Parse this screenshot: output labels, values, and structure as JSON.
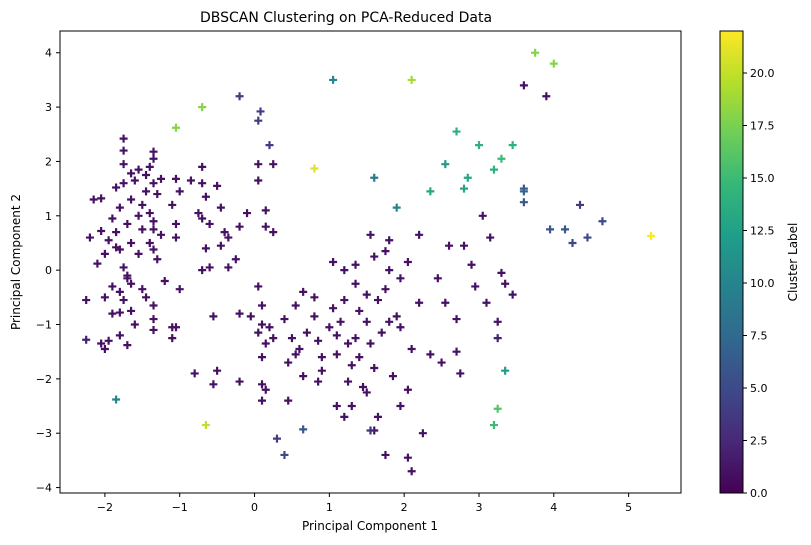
{
  "chart_data": {
    "type": "scatter",
    "title": "DBSCAN Clustering on PCA-Reduced Data",
    "xlabel": "Principal Component 1",
    "ylabel": "Principal Component 2",
    "xlim": [
      -2.6,
      5.7
    ],
    "ylim": [
      -4.1,
      4.4
    ],
    "xticks": [
      -2,
      -1,
      0,
      1,
      2,
      3,
      4,
      5
    ],
    "yticks": [
      -4,
      -3,
      -2,
      -1,
      0,
      1,
      2,
      3,
      4
    ],
    "marker": "plus",
    "colormap": "viridis",
    "colorbar": {
      "label": "Cluster Label",
      "range": [
        0,
        22
      ],
      "ticks": [
        0.0,
        2.5,
        5.0,
        7.5,
        10.0,
        12.5,
        15.0,
        17.5,
        20.0
      ],
      "tick_labels": [
        "0.0",
        "2.5",
        "5.0",
        "7.5",
        "10.0",
        "12.5",
        "15.0",
        "17.5",
        "20.0"
      ]
    },
    "points": [
      [
        -1.75,
        2.42,
        1
      ],
      [
        -1.75,
        2.2,
        1
      ],
      [
        -1.35,
        2.18,
        1
      ],
      [
        -1.35,
        2.05,
        1
      ],
      [
        -1.75,
        1.95,
        1
      ],
      [
        -1.55,
        1.85,
        1
      ],
      [
        -1.65,
        1.78,
        1
      ],
      [
        -1.45,
        1.75,
        1
      ],
      [
        -1.25,
        1.68,
        1
      ],
      [
        -1.05,
        1.68,
        1
      ],
      [
        -1.75,
        1.6,
        1
      ],
      [
        -1.6,
        1.65,
        1
      ],
      [
        -1.35,
        1.6,
        1
      ],
      [
        -1.4,
        1.9,
        1
      ],
      [
        -1.85,
        1.52,
        1
      ],
      [
        -1.45,
        1.45,
        1
      ],
      [
        -1.3,
        1.4,
        1
      ],
      [
        -1.0,
        1.45,
        1
      ],
      [
        -2.05,
        1.32,
        1
      ],
      [
        -1.65,
        1.3,
        1
      ],
      [
        -1.5,
        1.2,
        1
      ],
      [
        -1.1,
        1.2,
        1
      ],
      [
        -2.15,
        1.3,
        1
      ],
      [
        -1.8,
        1.15,
        1
      ],
      [
        -1.4,
        1.05,
        1
      ],
      [
        -1.55,
        1.0,
        1
      ],
      [
        -1.9,
        0.95,
        1
      ],
      [
        -1.35,
        0.9,
        1
      ],
      [
        -1.7,
        0.85,
        1
      ],
      [
        -1.05,
        0.85,
        1
      ],
      [
        -1.5,
        0.75,
        1
      ],
      [
        -1.35,
        0.75,
        1
      ],
      [
        -2.05,
        0.72,
        1
      ],
      [
        -1.85,
        0.7,
        1
      ],
      [
        -1.25,
        0.65,
        1
      ],
      [
        -1.95,
        0.55,
        1
      ],
      [
        -2.2,
        0.6,
        1
      ],
      [
        -1.65,
        0.5,
        1
      ],
      [
        -1.4,
        0.5,
        1
      ],
      [
        -1.05,
        0.6,
        1
      ],
      [
        -1.85,
        0.42,
        1
      ],
      [
        -1.8,
        0.38,
        1
      ],
      [
        -2.0,
        0.3,
        1
      ],
      [
        -1.35,
        0.38,
        1
      ],
      [
        -1.55,
        0.3,
        1
      ],
      [
        -1.3,
        0.2,
        1
      ],
      [
        -2.1,
        0.12,
        1
      ],
      [
        -1.75,
        0.05,
        1
      ],
      [
        -1.7,
        -0.1,
        1
      ],
      [
        -1.65,
        -0.25,
        1
      ],
      [
        -1.9,
        -0.3,
        1
      ],
      [
        -1.7,
        -0.15,
        1
      ],
      [
        -1.8,
        -0.4,
        1
      ],
      [
        -1.5,
        -0.35,
        1
      ],
      [
        -1.2,
        -0.2,
        1
      ],
      [
        -1.0,
        -0.35,
        1
      ],
      [
        -2.0,
        -0.5,
        1
      ],
      [
        -2.25,
        -0.55,
        1
      ],
      [
        -1.45,
        -0.5,
        1
      ],
      [
        -1.35,
        -0.65,
        1
      ],
      [
        -1.75,
        -0.55,
        1
      ],
      [
        -1.65,
        -0.75,
        1
      ],
      [
        -1.9,
        -0.8,
        1
      ],
      [
        -1.8,
        -0.78,
        1
      ],
      [
        -1.35,
        -0.9,
        1
      ],
      [
        -1.1,
        -1.05,
        1
      ],
      [
        -1.05,
        -1.05,
        1
      ],
      [
        -1.6,
        -1.0,
        1
      ],
      [
        -1.35,
        -1.1,
        1
      ],
      [
        -1.1,
        -1.25,
        1
      ],
      [
        -1.8,
        -1.2,
        1
      ],
      [
        -1.95,
        -1.3,
        1
      ],
      [
        -1.7,
        -1.38,
        1
      ],
      [
        -2.05,
        -1.35,
        1
      ],
      [
        -2.0,
        -1.45,
        1
      ],
      [
        -2.25,
        -1.28,
        2
      ],
      [
        -0.7,
        1.9,
        1
      ],
      [
        -0.85,
        1.65,
        1
      ],
      [
        -0.7,
        1.6,
        1
      ],
      [
        -0.5,
        1.55,
        1
      ],
      [
        -0.65,
        1.35,
        1
      ],
      [
        -0.45,
        1.15,
        1
      ],
      [
        -0.75,
        1.05,
        1
      ],
      [
        -0.7,
        0.95,
        1
      ],
      [
        -0.6,
        0.85,
        1
      ],
      [
        -0.4,
        0.7,
        1
      ],
      [
        -0.35,
        0.6,
        1
      ],
      [
        -0.2,
        0.8,
        1
      ],
      [
        -0.1,
        1.05,
        1
      ],
      [
        -0.45,
        0.45,
        1
      ],
      [
        -0.65,
        0.4,
        1
      ],
      [
        -0.6,
        0.05,
        1
      ],
      [
        -0.35,
        0.05,
        1
      ],
      [
        -0.25,
        0.2,
        1
      ],
      [
        -0.7,
        0.0,
        1
      ],
      [
        0.05,
        1.95,
        1
      ],
      [
        0.05,
        1.65,
        1
      ],
      [
        0.25,
        1.95,
        1
      ],
      [
        0.15,
        1.1,
        1
      ],
      [
        0.15,
        0.8,
        1
      ],
      [
        0.25,
        0.7,
        1
      ],
      [
        0.05,
        -0.3,
        1
      ],
      [
        0.1,
        -0.65,
        1
      ],
      [
        -0.55,
        -0.85,
        1
      ],
      [
        -0.2,
        -0.8,
        1
      ],
      [
        -0.05,
        -0.85,
        1
      ],
      [
        0.1,
        -1.0,
        1
      ],
      [
        0.05,
        -1.15,
        1
      ],
      [
        0.2,
        -1.05,
        1
      ],
      [
        0.25,
        -1.25,
        1
      ],
      [
        0.15,
        -1.35,
        1
      ],
      [
        0.1,
        -1.6,
        1
      ],
      [
        0.4,
        -0.9,
        1
      ],
      [
        0.5,
        -1.25,
        1
      ],
      [
        0.55,
        -0.65,
        1
      ],
      [
        0.6,
        -1.45,
        1
      ],
      [
        0.55,
        -1.55,
        1
      ],
      [
        0.45,
        -1.7,
        1
      ],
      [
        0.65,
        -0.4,
        1
      ],
      [
        0.8,
        -0.5,
        1
      ],
      [
        0.7,
        -1.15,
        1
      ],
      [
        0.85,
        -1.3,
        1
      ],
      [
        0.9,
        -1.6,
        1
      ],
      [
        0.8,
        -0.85,
        1
      ],
      [
        0.65,
        -1.95,
        1
      ],
      [
        0.85,
        -2.05,
        1
      ],
      [
        0.9,
        -1.85,
        1
      ],
      [
        1.0,
        -1.05,
        1
      ],
      [
        1.05,
        -0.7,
        1
      ],
      [
        1.1,
        -1.55,
        1
      ],
      [
        1.1,
        -1.2,
        1
      ],
      [
        1.15,
        -0.95,
        1
      ],
      [
        1.2,
        -0.55,
        1
      ],
      [
        1.25,
        -1.35,
        1
      ],
      [
        1.25,
        -2.05,
        1
      ],
      [
        1.3,
        -1.75,
        1
      ],
      [
        1.35,
        -1.25,
        1
      ],
      [
        1.4,
        -0.75,
        1
      ],
      [
        1.4,
        -1.6,
        1
      ],
      [
        1.45,
        -2.15,
        1
      ],
      [
        1.5,
        -0.95,
        1
      ],
      [
        1.55,
        -1.35,
        1
      ],
      [
        1.6,
        -1.8,
        1
      ],
      [
        1.65,
        -0.55,
        1
      ],
      [
        1.7,
        -1.15,
        1
      ],
      [
        1.8,
        -0.95,
        1
      ],
      [
        1.85,
        -1.95,
        1
      ],
      [
        1.9,
        -0.85,
        1
      ],
      [
        1.05,
        0.15,
        1
      ],
      [
        1.2,
        0.0,
        1
      ],
      [
        1.35,
        -0.25,
        1
      ],
      [
        1.55,
        0.65,
        1
      ],
      [
        1.6,
        0.25,
        1
      ],
      [
        1.75,
        0.35,
        1
      ],
      [
        1.8,
        0.0,
        1
      ],
      [
        1.8,
        0.55,
        1
      ],
      [
        1.95,
        -0.15,
        1
      ],
      [
        2.05,
        0.15,
        1
      ],
      [
        2.2,
        0.65,
        1
      ],
      [
        2.2,
        -0.6,
        1
      ],
      [
        1.35,
        0.1,
        1
      ],
      [
        1.5,
        -0.45,
        1
      ],
      [
        1.75,
        -0.35,
        1
      ],
      [
        1.95,
        -1.05,
        1
      ],
      [
        2.1,
        -1.45,
        1
      ],
      [
        2.45,
        -0.15,
        1
      ],
      [
        2.6,
        0.45,
        1
      ],
      [
        2.55,
        -0.6,
        1
      ],
      [
        2.7,
        -0.9,
        1
      ],
      [
        2.8,
        0.45,
        1
      ],
      [
        2.9,
        0.1,
        1
      ],
      [
        2.95,
        -0.3,
        1
      ],
      [
        3.05,
        1.0,
        1
      ],
      [
        3.1,
        -0.6,
        1
      ],
      [
        3.15,
        0.6,
        1
      ],
      [
        3.25,
        -0.95,
        1
      ],
      [
        3.3,
        -0.05,
        1
      ],
      [
        3.35,
        -0.25,
        1
      ],
      [
        3.25,
        -1.25,
        2
      ],
      [
        3.45,
        -0.45,
        1
      ],
      [
        2.35,
        -1.55,
        1
      ],
      [
        2.5,
        -1.7,
        1
      ],
      [
        2.7,
        -1.5,
        1
      ],
      [
        2.75,
        -1.9,
        1
      ],
      [
        1.6,
        -2.95,
        1
      ],
      [
        1.65,
        -2.7,
        1
      ],
      [
        1.95,
        -2.5,
        1
      ],
      [
        1.5,
        -2.25,
        1
      ],
      [
        1.3,
        -2.5,
        1
      ],
      [
        1.1,
        -2.5,
        1
      ],
      [
        1.2,
        -2.7,
        1
      ],
      [
        1.75,
        -3.4,
        1
      ],
      [
        2.05,
        -3.45,
        1
      ],
      [
        2.1,
        -3.7,
        1
      ],
      [
        2.25,
        -3.0,
        1
      ],
      [
        2.05,
        -2.2,
        1
      ],
      [
        -0.8,
        -1.9,
        1
      ],
      [
        -0.55,
        -2.1,
        1
      ],
      [
        -0.5,
        -1.85,
        1
      ],
      [
        -0.2,
        -2.05,
        1
      ],
      [
        0.1,
        -2.1,
        1
      ],
      [
        0.15,
        -2.2,
        1
      ],
      [
        0.1,
        -2.4,
        1
      ],
      [
        0.45,
        -2.4,
        1
      ],
      [
        0.3,
        -3.1,
        4
      ],
      [
        0.4,
        -3.4,
        5
      ],
      [
        0.65,
        -2.93,
        6
      ],
      [
        1.55,
        -2.95,
        3
      ],
      [
        -0.2,
        3.2,
        4
      ],
      [
        0.08,
        2.92,
        4
      ],
      [
        0.05,
        2.75,
        4
      ],
      [
        0.2,
        2.3,
        4
      ],
      [
        3.6,
        3.4,
        1
      ],
      [
        3.9,
        3.2,
        1
      ],
      [
        3.6,
        1.5,
        6
      ],
      [
        3.6,
        1.45,
        7
      ],
      [
        3.6,
        1.25,
        6
      ],
      [
        3.95,
        0.75,
        6
      ],
      [
        4.15,
        0.75,
        6
      ],
      [
        4.25,
        0.5,
        5
      ],
      [
        4.35,
        1.2,
        4
      ],
      [
        4.45,
        0.6,
        5
      ],
      [
        4.65,
        0.9,
        5
      ],
      [
        1.05,
        3.5,
        10
      ],
      [
        1.6,
        1.7,
        9
      ],
      [
        1.9,
        1.15,
        10
      ],
      [
        2.35,
        1.45,
        13
      ],
      [
        2.55,
        1.95,
        12
      ],
      [
        2.7,
        2.55,
        14
      ],
      [
        2.8,
        1.5,
        13
      ],
      [
        2.85,
        1.7,
        13
      ],
      [
        3.0,
        2.3,
        14
      ],
      [
        3.2,
        1.85,
        14
      ],
      [
        3.3,
        2.05,
        15
      ],
      [
        3.45,
        2.3,
        14
      ],
      [
        3.35,
        -1.85,
        12
      ],
      [
        3.2,
        -2.85,
        15
      ],
      [
        3.25,
        -2.55,
        16
      ],
      [
        -1.85,
        -2.38,
        10
      ],
      [
        -1.05,
        2.62,
        18
      ],
      [
        -0.7,
        3.0,
        18
      ],
      [
        2.1,
        3.5,
        19
      ],
      [
        3.75,
        4.0,
        18
      ],
      [
        4.0,
        3.8,
        18
      ],
      [
        -0.65,
        -2.85,
        20
      ],
      [
        0.8,
        1.87,
        21
      ],
      [
        5.3,
        0.63,
        22
      ]
    ]
  }
}
